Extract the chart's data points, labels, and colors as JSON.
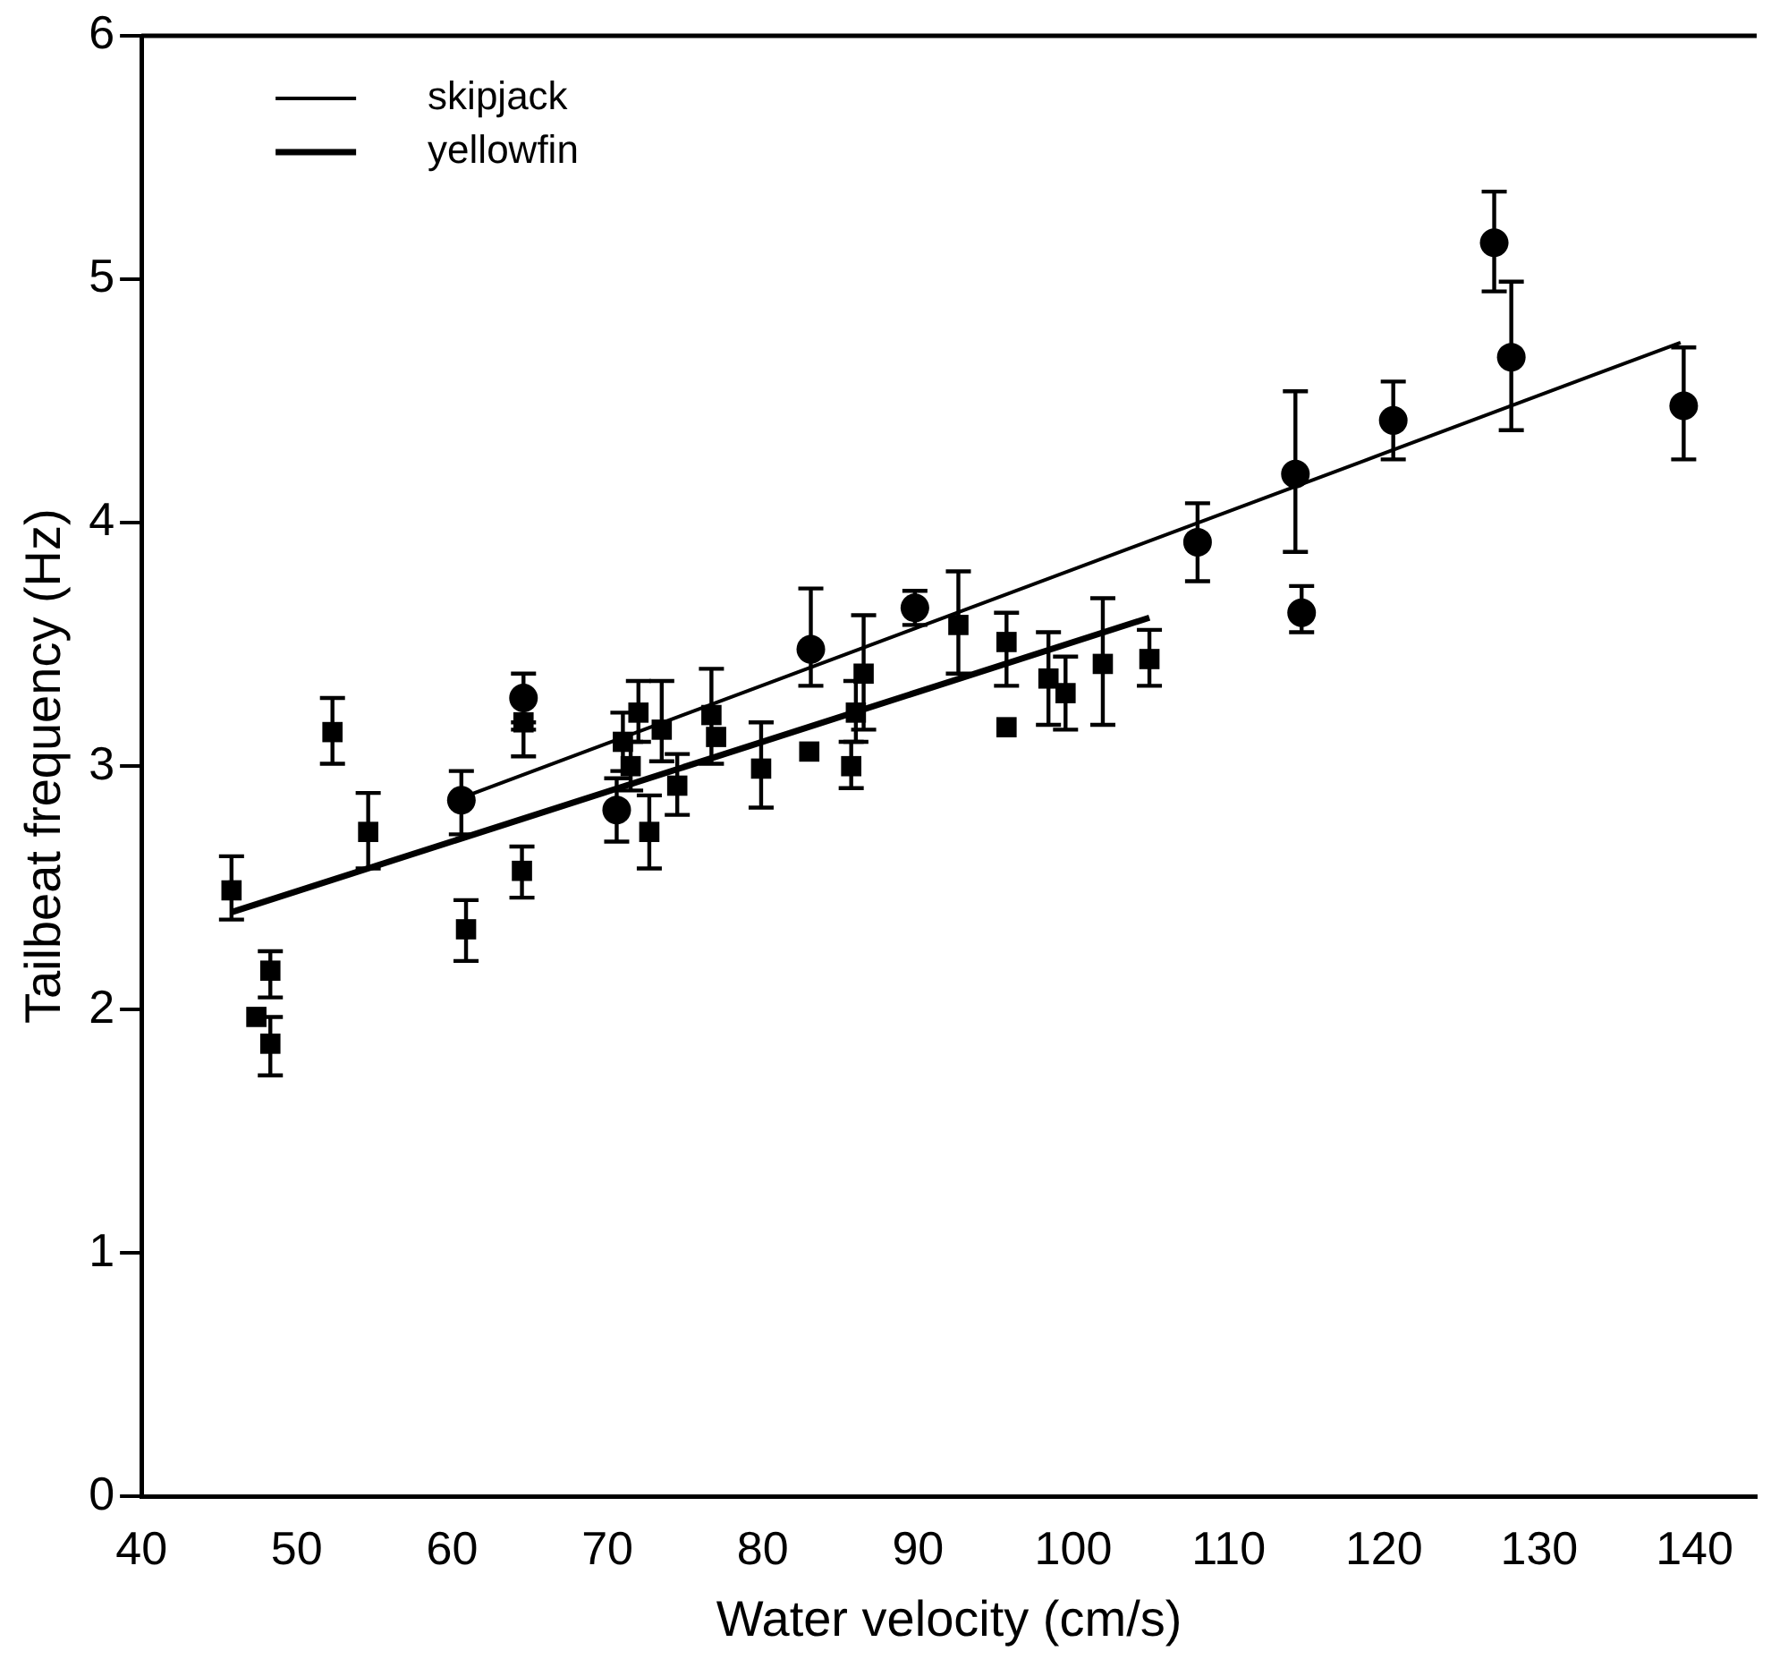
{
  "chart_data": {
    "type": "scatter",
    "xlabel": "Water velocity (cm/s)",
    "ylabel": "Tailbeat frequency (Hz)",
    "xlim": [
      40,
      144
    ],
    "xticks": [
      40,
      50,
      60,
      70,
      80,
      90,
      100,
      110,
      120,
      130,
      140
    ],
    "ylim": [
      0,
      6
    ],
    "yticks": [
      0,
      1,
      2,
      3,
      4,
      5,
      6
    ],
    "grid": false,
    "legend": "top left",
    "series": [
      {
        "type": "scatter",
        "marker": "circle",
        "color": "#000000",
        "x": [
          60.6,
          64.6,
          70.6,
          83.1,
          89.8,
          108,
          114.3,
          114.7,
          120.6,
          127.1,
          128.2,
          139.3
        ],
        "values": [
          2.86,
          3.28,
          2.82,
          3.48,
          3.65,
          3.92,
          4.2,
          3.63,
          4.42,
          5.15,
          4.68,
          4.48
        ],
        "errors": [
          [
            2.72,
            2.98
          ],
          [
            3.15,
            3.38
          ],
          [
            2.69,
            2.95
          ],
          [
            3.33,
            3.73
          ],
          [
            3.58,
            3.72
          ],
          [
            3.76,
            4.08
          ],
          [
            3.88,
            4.54
          ],
          [
            3.55,
            3.74
          ],
          [
            4.26,
            4.58
          ],
          [
            4.95,
            5.36
          ],
          [
            4.38,
            4.99
          ],
          [
            4.26,
            4.72
          ]
        ]
      },
      {
        "type": "scatter",
        "marker": "square",
        "color": "#000000",
        "x": [
          45.8,
          47.4,
          48.3,
          48.3,
          52.3,
          54.6,
          60.9,
          64.5,
          64.6,
          71,
          71.5,
          72,
          72.7,
          73.5,
          74,
          74.5,
          76.7,
          77,
          79.9,
          83,
          85.7,
          86,
          86.5,
          92.6,
          95.7,
          95.7,
          98.4,
          99.5,
          101.9,
          104.9
        ],
        "values": [
          2.49,
          1.97,
          2.16,
          1.86,
          3.14,
          2.73,
          2.33,
          2.57,
          3.18,
          3.1,
          3.0,
          3.22,
          2.73,
          3.15,
          null,
          2.92,
          3.21,
          3.12,
          2.99,
          3.06,
          3.0,
          3.22,
          3.38,
          3.58,
          3.16,
          3.51,
          3.36,
          3.3,
          3.42,
          3.44
        ],
        "errors": [
          [
            2.37,
            2.63
          ],
          null,
          [
            2.05,
            2.24
          ],
          [
            1.73,
            1.97
          ],
          [
            3.01,
            3.28
          ],
          [
            2.58,
            2.89
          ],
          [
            2.2,
            2.45
          ],
          [
            2.46,
            2.67
          ],
          [
            3.04,
            3.18
          ],
          [
            2.98,
            3.22
          ],
          [
            2.9,
            3.1
          ],
          [
            3.1,
            3.35
          ],
          [
            2.58,
            2.88
          ],
          [
            3.02,
            3.35
          ],
          null,
          [
            2.8,
            3.05
          ],
          [
            3.01,
            3.4
          ],
          null,
          [
            2.83,
            3.18
          ],
          null,
          [
            2.91,
            3.1
          ],
          [
            3.1,
            3.35
          ],
          [
            3.15,
            3.62
          ],
          [
            3.38,
            3.8
          ],
          null,
          [
            3.33,
            3.63
          ],
          [
            3.17,
            3.55
          ],
          [
            3.15,
            3.45
          ],
          [
            3.17,
            3.69
          ],
          [
            3.33,
            3.56
          ]
        ]
      },
      {
        "type": "line",
        "name": "skipjack",
        "color": "#000000",
        "x": [
          60.6,
          139.1
        ],
        "values": [
          2.87,
          4.74
        ]
      },
      {
        "type": "line",
        "name": "yellowfin",
        "color": "#000000",
        "x": [
          45.8,
          104.9
        ],
        "values": [
          2.4,
          3.61
        ]
      }
    ]
  }
}
